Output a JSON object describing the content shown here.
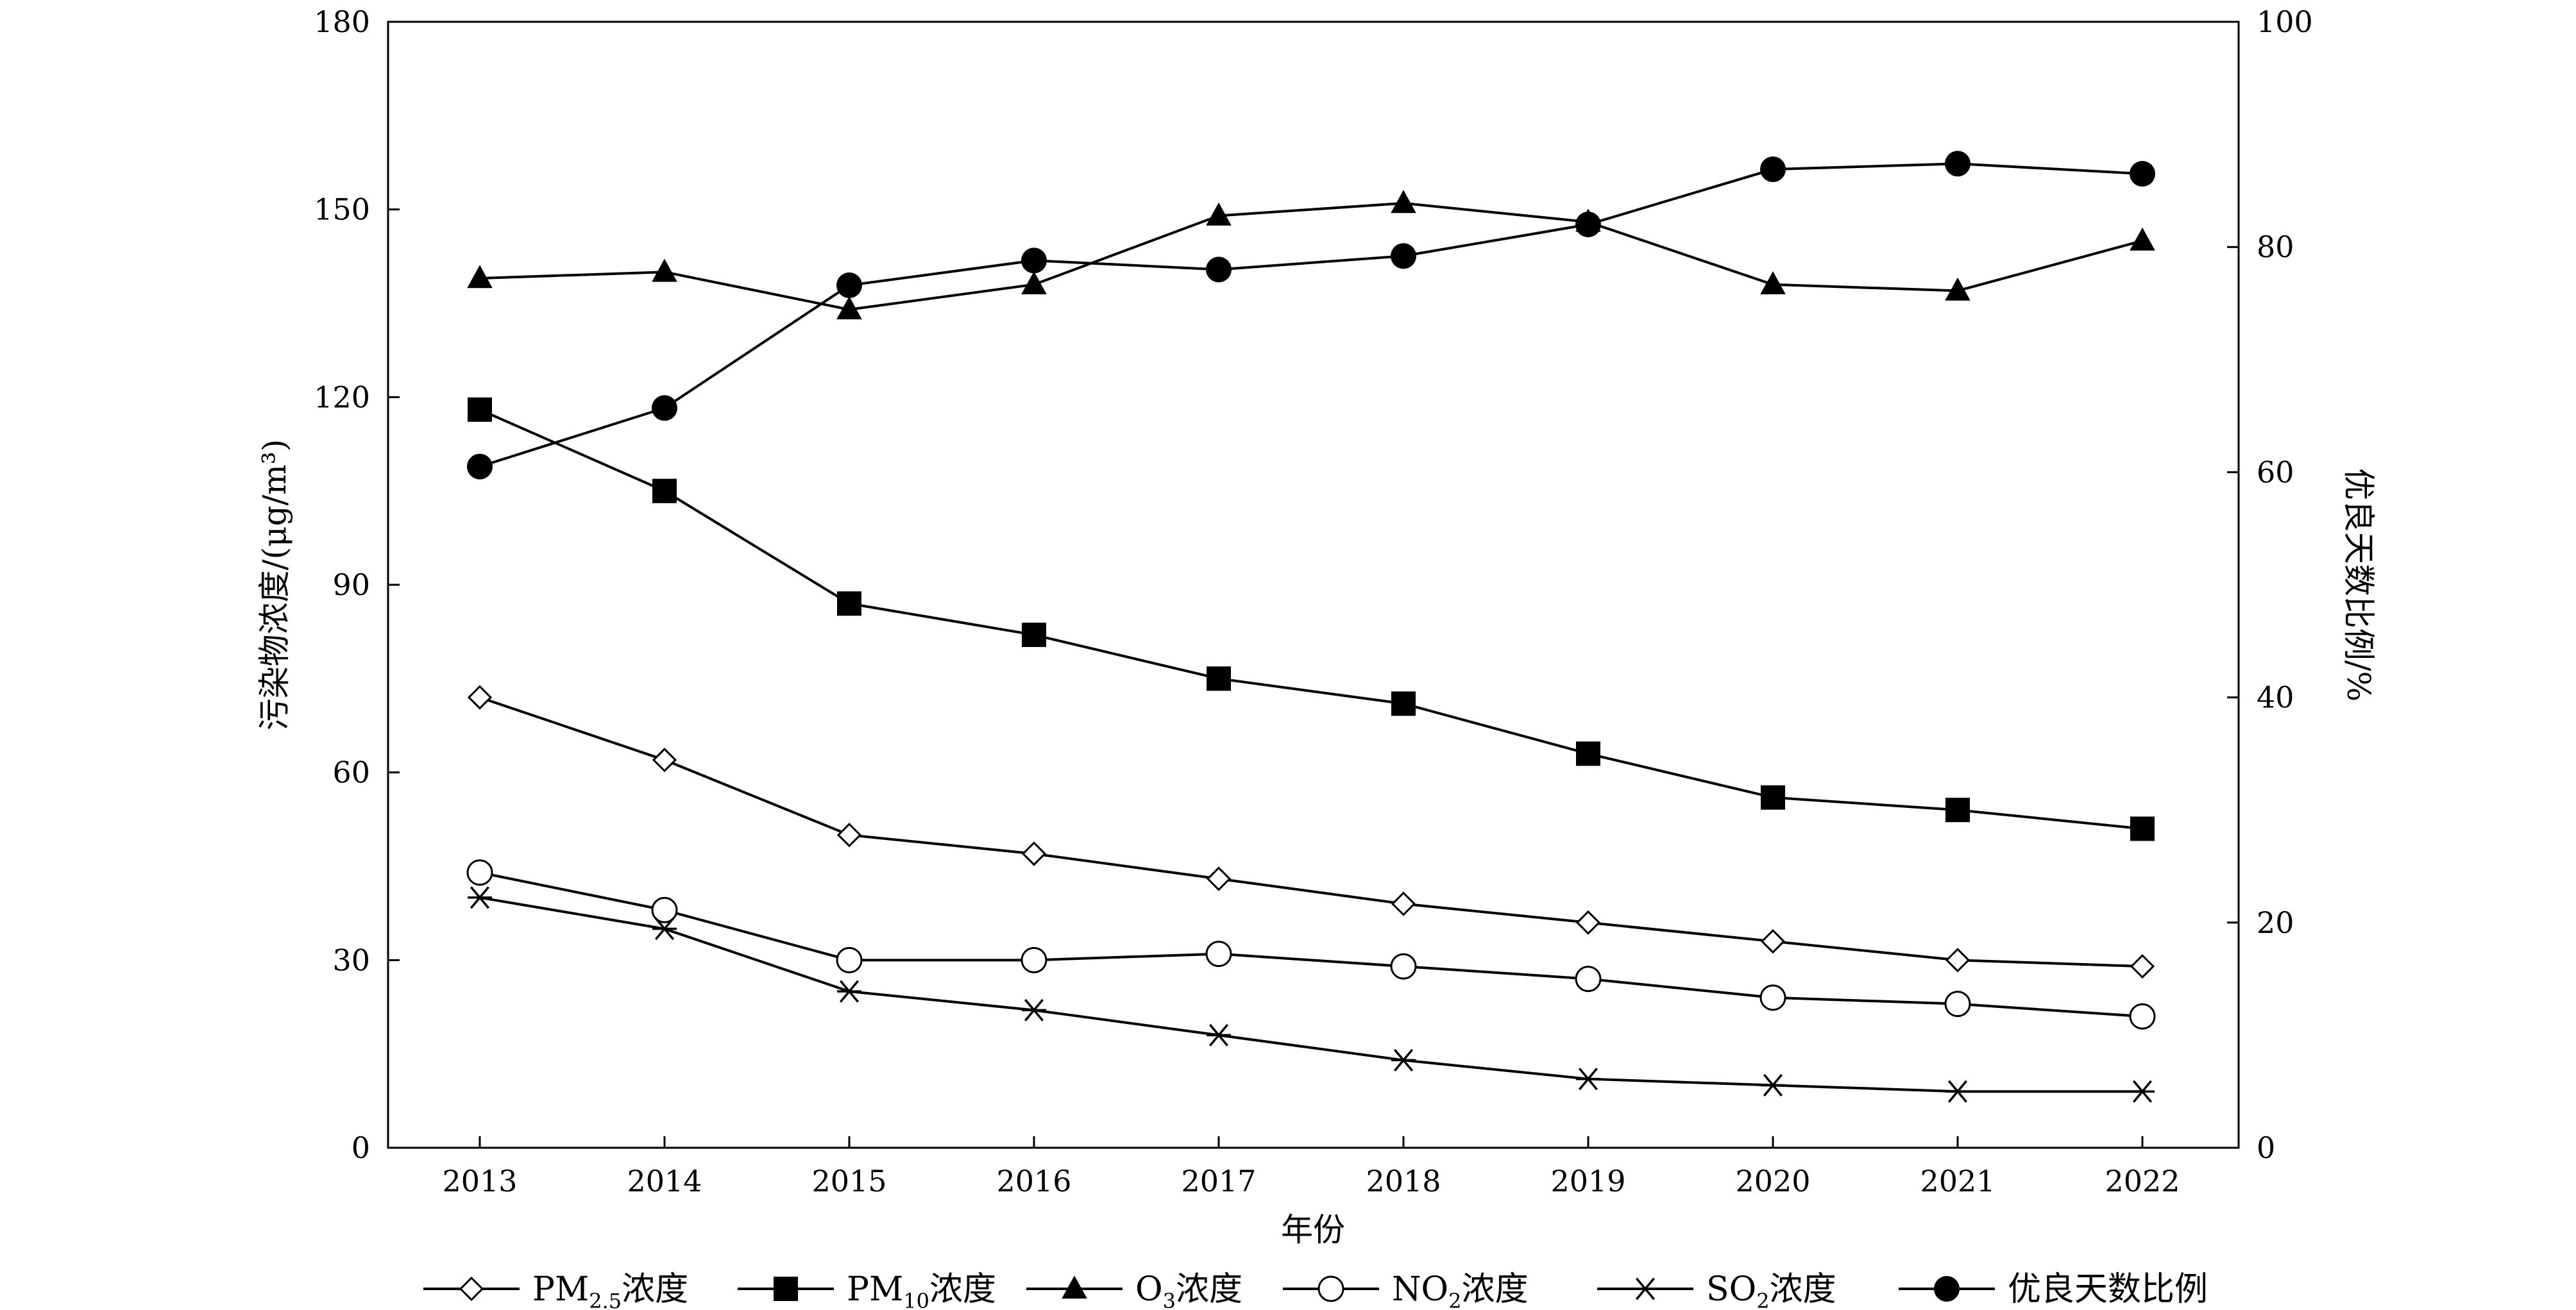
{
  "chart_data": {
    "type": "line",
    "xlabel": "年份",
    "ylabel_left": "污染物浓度/(μg/m³)",
    "ylabel_right": "优良天数比例/%",
    "x": [
      "2013",
      "2014",
      "2015",
      "2016",
      "2017",
      "2018",
      "2019",
      "2020",
      "2021",
      "2022"
    ],
    "ylim_left": [
      0,
      180
    ],
    "ylim_right": [
      0,
      100
    ],
    "yticks_left": [
      0,
      30,
      60,
      90,
      120,
      150,
      180
    ],
    "yticks_right": [
      0,
      20,
      40,
      60,
      80,
      100
    ],
    "grid": false,
    "legend_position": "bottom",
    "series": [
      {
        "key": "pm25",
        "name_main": "PM",
        "name_sub": "2.5",
        "name_rest": "浓度",
        "marker": "open-diamond",
        "axis": "left",
        "values": [
          72,
          62,
          50,
          47,
          43,
          39,
          36,
          33,
          30,
          29
        ]
      },
      {
        "key": "pm10",
        "name_main": "PM",
        "name_sub": "10",
        "name_rest": "浓度",
        "marker": "filled-square",
        "axis": "left",
        "values": [
          118,
          105,
          87,
          82,
          75,
          71,
          63,
          56,
          54,
          51
        ]
      },
      {
        "key": "o3",
        "name_main": "O",
        "name_sub": "3",
        "name_rest": "浓度",
        "marker": "filled-triangle",
        "axis": "left",
        "values": [
          139,
          140,
          134,
          138,
          149,
          151,
          148,
          138,
          137,
          145
        ]
      },
      {
        "key": "no2",
        "name_main": "NO",
        "name_sub": "2",
        "name_rest": "浓度",
        "marker": "open-circle",
        "axis": "left",
        "values": [
          44,
          38,
          30,
          30,
          31,
          29,
          27,
          24,
          23,
          21
        ]
      },
      {
        "key": "so2",
        "name_main": "SO",
        "name_sub": "2",
        "name_rest": "浓度",
        "marker": "asterisk",
        "axis": "left",
        "values": [
          40,
          35,
          25,
          22,
          18,
          14,
          11,
          10,
          9,
          9
        ]
      },
      {
        "key": "good_days",
        "name_main": "优良天数比例",
        "name_sub": "",
        "name_rest": "",
        "marker": "filled-circle",
        "axis": "right",
        "values": [
          60.5,
          65.7,
          76.6,
          78.8,
          78.0,
          79.2,
          82.0,
          86.9,
          87.4,
          86.5
        ]
      }
    ]
  }
}
